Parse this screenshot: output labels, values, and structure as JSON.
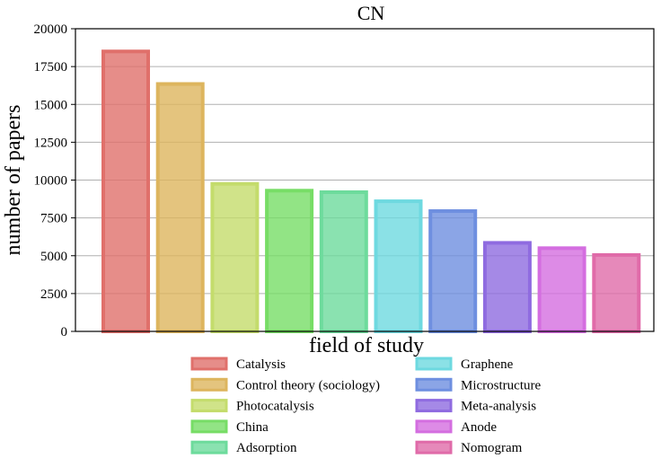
{
  "chart_data": {
    "type": "bar",
    "title": "CN",
    "xlabel": "field of study",
    "ylabel": "number of papers",
    "ylim": [
      0,
      20000
    ],
    "yticks": [
      0,
      2500,
      5000,
      7500,
      10000,
      12500,
      15000,
      17500,
      20000
    ],
    "grid": "horizontal",
    "legend_position": "below",
    "categories": [
      "Catalysis",
      "Control theory (sociology)",
      "Photocatalysis",
      "China",
      "Adsorption",
      "Graphene",
      "Microstructure",
      "Meta-analysis",
      "Anode",
      "Nomogram"
    ],
    "values": [
      18500,
      16350,
      9750,
      9300,
      9200,
      8600,
      7950,
      5850,
      5500,
      5050
    ],
    "colors": [
      "#e0706b",
      "#ddb55e",
      "#c4dc6c",
      "#77dd66",
      "#6ddb9c",
      "#6ed9e0",
      "#6e8fe0",
      "#8f6be0",
      "#d46ee0",
      "#e06ba9"
    ]
  }
}
